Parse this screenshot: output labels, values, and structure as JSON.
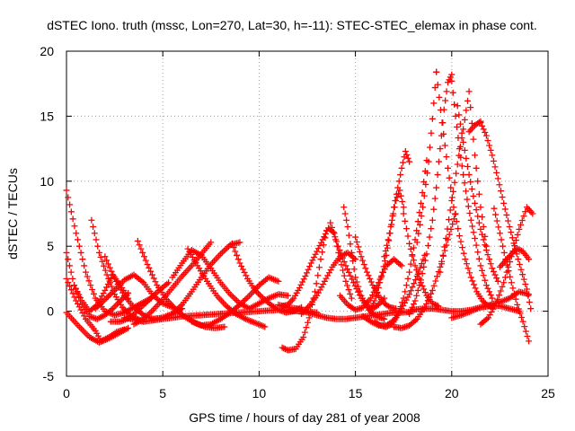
{
  "chart_data": {
    "type": "scatter",
    "title": "dSTEC Iono. truth (mssc, Lon=270, Lat=30, h=-11): STEC-STEC_elemax in phase cont.",
    "xlabel": "GPS time / hours of day 281 of year 2008",
    "ylabel": "dSTEC  / TECUs",
    "xlim": [
      0,
      25
    ],
    "ylim": [
      -5,
      20
    ],
    "x_ticks": [
      0,
      5,
      10,
      15,
      20,
      25
    ],
    "y_ticks": [
      -5,
      0,
      5,
      10,
      15,
      20
    ],
    "x_tick_labels": [
      "0",
      "5",
      "10",
      "15",
      "20",
      "25"
    ],
    "y_tick_labels": [
      "-5",
      "0",
      "5",
      "10",
      "15",
      "20"
    ],
    "grid": true,
    "grid_style": "dotted",
    "marker": "+",
    "color": "#ff0000",
    "series": [
      {
        "x": [
          0.0,
          0.5,
          1.0,
          1.5,
          2.0,
          2.5,
          3.0,
          3.5,
          4.0,
          4.4
        ],
        "y": [
          9.3,
          6.0,
          3.0,
          1.0,
          0.0,
          -0.3,
          -0.1,
          0.3,
          0.7,
          1.0
        ]
      },
      {
        "x": [
          0.0,
          0.4,
          0.8,
          1.2,
          1.6,
          2.0,
          2.4,
          2.8,
          3.2
        ],
        "y": [
          4.5,
          2.0,
          0.5,
          -0.4,
          -0.6,
          -0.3,
          0.2,
          0.8,
          1.4
        ]
      },
      {
        "x": [
          0.0,
          0.5,
          1.0,
          1.5,
          1.8,
          2.2,
          2.6,
          3.0
        ],
        "y": [
          2.5,
          0.8,
          -0.6,
          -1.5,
          -2.3,
          -2.0,
          -1.6,
          -1.4
        ]
      },
      {
        "x": [
          0.0,
          0.6,
          1.2,
          1.7,
          2.2,
          2.7,
          3.2
        ],
        "y": [
          -0.1,
          -1.1,
          -2.0,
          -2.4,
          -2.1,
          -1.7,
          -1.3
        ]
      },
      {
        "x": [
          0.4,
          0.8,
          1.2,
          1.6,
          2.0,
          2.4,
          2.8,
          3.2
        ],
        "y": [
          2.0,
          0.8,
          0.0,
          0.5,
          1.6,
          2.8,
          2.0,
          1.0
        ]
      },
      {
        "x": [
          1.3,
          1.7,
          2.1,
          2.5,
          2.9,
          3.3,
          3.7,
          4.0
        ],
        "y": [
          7.0,
          4.5,
          2.8,
          1.3,
          0.3,
          -0.3,
          -0.6,
          -0.8
        ]
      },
      {
        "x": [
          2.0,
          2.5,
          3.0,
          3.5,
          4.0,
          4.5,
          5.0,
          5.5,
          6.0
        ],
        "y": [
          4.2,
          2.5,
          1.2,
          0.3,
          -0.3,
          -0.6,
          -0.5,
          -0.2,
          0.2
        ]
      },
      {
        "x": [
          1.5,
          2.0,
          2.5,
          3.0,
          3.5,
          4.0,
          4.5,
          5.0,
          5.5
        ],
        "y": [
          0.2,
          0.9,
          1.6,
          2.4,
          2.8,
          2.2,
          1.2,
          0.6,
          0.3
        ]
      },
      {
        "x": [
          2.3,
          2.8,
          3.3,
          3.8,
          4.3,
          4.8,
          5.3
        ],
        "y": [
          -0.8,
          -0.8,
          -0.5,
          0.2,
          0.9,
          1.6,
          2.2
        ]
      },
      {
        "x": [
          3.7,
          4.2,
          4.7,
          5.2,
          5.7,
          6.2,
          6.7,
          7.2,
          7.7,
          8.2
        ],
        "y": [
          5.4,
          3.6,
          2.0,
          0.9,
          0.1,
          -0.5,
          -0.9,
          -1.2,
          -1.3,
          -1.2
        ]
      },
      {
        "x": [
          3.5,
          4.0,
          4.5,
          5.0,
          5.5,
          6.0,
          6.5,
          7.0,
          7.5
        ],
        "y": [
          -1.0,
          -0.6,
          0.1,
          0.9,
          1.8,
          2.7,
          3.5,
          4.4,
          5.3
        ]
      },
      {
        "x": [
          4.5,
          5.0,
          5.5,
          6.0,
          6.5,
          7.0,
          7.5,
          8.0,
          8.5,
          9.0
        ],
        "y": [
          -0.6,
          -0.5,
          -0.2,
          0.5,
          1.5,
          2.6,
          3.6,
          4.4,
          5.1,
          5.3
        ]
      },
      {
        "x": [
          5.5,
          6.0,
          6.5,
          7.0,
          7.5,
          8.0,
          8.5,
          9.0,
          9.5
        ],
        "y": [
          2.6,
          3.7,
          4.7,
          4.3,
          3.3,
          2.2,
          1.3,
          0.6,
          0.2
        ]
      },
      {
        "x": [
          6.3,
          6.8,
          7.3,
          7.8,
          8.3,
          8.8,
          9.3,
          9.8,
          10.3
        ],
        "y": [
          4.8,
          3.5,
          2.3,
          1.2,
          0.4,
          -0.2,
          -0.6,
          -0.9,
          -1.2
        ]
      },
      {
        "x": [
          8.6,
          9.0,
          9.4,
          9.8,
          10.2,
          10.6,
          11.0,
          11.4,
          11.8,
          12.2
        ],
        "y": [
          5.2,
          3.7,
          2.5,
          1.6,
          1.0,
          0.5,
          0.1,
          -0.1,
          0.0,
          0.3
        ]
      },
      {
        "x": [
          6.5,
          7.0,
          7.5,
          8.0,
          8.5,
          9.0,
          9.5,
          10.0,
          10.5,
          11.0
        ],
        "y": [
          -0.8,
          -1.1,
          -1.0,
          -0.6,
          -0.1,
          0.5,
          1.2,
          2.0,
          2.6,
          2.3
        ]
      },
      {
        "x": [
          3.0,
          4.0,
          5.0,
          6.0,
          7.0,
          8.0,
          9.0,
          10.0,
          11.0,
          12.0,
          13.0
        ],
        "y": [
          -0.5,
          -0.8,
          -0.6,
          -0.4,
          -0.3,
          -0.2,
          -0.1,
          0.0,
          0.1,
          0.0,
          -0.1
        ]
      },
      {
        "x": [
          9.5,
          10.0,
          10.5,
          11.0,
          11.5
        ],
        "y": [
          0.2,
          0.6,
          1.0,
          1.3,
          1.2
        ]
      },
      {
        "x": [
          11.0,
          11.5,
          12.0,
          12.5,
          13.0,
          13.5,
          14.0,
          14.5,
          15.0,
          15.5,
          16.0,
          16.5,
          17.0,
          17.5,
          18.0
        ],
        "y": [
          0.5,
          0.3,
          0.2,
          -0.1,
          -0.3,
          -0.5,
          -0.6,
          -0.6,
          -0.5,
          -0.4,
          -0.3,
          -0.2,
          -0.1,
          -0.1,
          0.0
        ]
      },
      {
        "x": [
          11.2,
          11.5,
          11.8,
          12.1,
          12.4,
          12.7,
          13.0,
          13.3,
          13.6,
          13.9,
          14.2,
          14.5,
          14.8
        ],
        "y": [
          0.4,
          0.5,
          1.0,
          1.8,
          2.7,
          3.7,
          4.6,
          5.5,
          6.4,
          6.0,
          4.0,
          2.3,
          1.0
        ]
      },
      {
        "x": [
          11.2,
          11.5,
          11.9,
          12.3,
          12.6,
          12.9,
          13.2,
          13.5
        ],
        "y": [
          -2.8,
          -3.0,
          -2.9,
          -2.0,
          -0.5,
          1.5,
          4.0,
          6.2
        ]
      },
      {
        "x": [
          12.2,
          12.6,
          13.0,
          13.4,
          13.8,
          14.2,
          14.6,
          15.0
        ],
        "y": [
          -0.2,
          0.4,
          1.2,
          2.3,
          3.4,
          4.2,
          4.5,
          4.0
        ]
      },
      {
        "x": [
          13.7,
          14.1,
          14.5,
          14.9,
          15.3,
          15.7,
          16.1,
          16.5
        ],
        "y": [
          6.8,
          5.0,
          3.5,
          2.2,
          1.0,
          0.1,
          -0.4,
          -0.6
        ]
      },
      {
        "x": [
          14.4,
          14.6,
          14.8,
          15.0,
          15.3,
          15.6,
          15.9,
          16.2,
          16.5
        ],
        "y": [
          8.0,
          6.5,
          4.5,
          2.6,
          1.2,
          0.4,
          0.2,
          0.5,
          1.0
        ]
      },
      {
        "x": [
          14.2,
          14.6,
          15.0,
          15.4,
          15.8,
          16.2,
          16.6,
          17.0,
          17.4
        ],
        "y": [
          1.2,
          0.5,
          0.1,
          0.3,
          1.0,
          2.2,
          3.5,
          4.0,
          3.5
        ]
      },
      {
        "x": [
          15.0,
          15.3,
          15.6,
          15.9,
          16.2,
          16.5,
          16.8,
          17.1
        ],
        "y": [
          5.7,
          4.2,
          3.0,
          2.0,
          1.2,
          0.6,
          0.3,
          0.2
        ]
      },
      {
        "x": [
          15.4,
          15.8,
          16.2,
          16.6,
          17.0,
          17.4,
          17.8,
          18.2,
          18.6
        ],
        "y": [
          -0.4,
          -0.8,
          -1.1,
          -1.1,
          -0.7,
          0.2,
          1.3,
          2.7,
          4.3
        ]
      },
      {
        "x": [
          15.8,
          16.0,
          16.2,
          16.4,
          16.6,
          16.8,
          17.0,
          17.2,
          17.4,
          17.6,
          17.8
        ],
        "y": [
          0.2,
          0.8,
          1.8,
          3.0,
          4.3,
          6.0,
          8.0,
          9.5,
          11.0,
          12.3,
          11.5
        ]
      },
      {
        "x": [
          16.0,
          16.3,
          16.6,
          16.9,
          17.2,
          17.5,
          17.8,
          18.1,
          18.4,
          18.7
        ],
        "y": [
          -0.8,
          -1.1,
          -1.2,
          -1.0,
          -0.3,
          1.0,
          3.0,
          5.5,
          8.3,
          11.6
        ]
      },
      {
        "x": [
          16.5,
          16.7,
          16.9,
          17.1,
          17.3,
          17.5
        ],
        "y": [
          4.2,
          5.5,
          7.0,
          8.5,
          9.3,
          8.0
        ]
      },
      {
        "x": [
          17.0,
          17.4,
          17.8,
          18.2,
          18.6,
          19.0,
          19.4,
          19.8,
          20.2
        ],
        "y": [
          -1.2,
          -1.3,
          -1.1,
          -0.6,
          0.3,
          1.6,
          3.4,
          5.5,
          7.5
        ]
      },
      {
        "x": [
          17.5,
          17.8,
          18.1,
          18.4,
          18.7,
          19.0,
          19.3
        ],
        "y": [
          7.5,
          5.2,
          3.5,
          2.2,
          1.2,
          0.6,
          0.4
        ]
      },
      {
        "x": [
          17.8,
          18.1,
          18.4,
          18.7,
          19.0,
          19.2,
          19.4,
          19.6,
          19.8,
          20.0
        ],
        "y": [
          -0.2,
          0.8,
          2.4,
          4.4,
          7.0,
          9.5,
          12.5,
          15.5,
          17.6,
          18.2
        ]
      },
      {
        "x": [
          18.2,
          18.5,
          18.8,
          19.0,
          19.2
        ],
        "y": [
          5.3,
          8.0,
          11.5,
          14.8,
          18.4
        ]
      },
      {
        "x": [
          19.2,
          19.5,
          19.8,
          20.1,
          20.4,
          20.7,
          21.0,
          21.3,
          21.6,
          21.9,
          22.2
        ],
        "y": [
          18.4,
          14.5,
          11.0,
          8.0,
          5.8,
          4.0,
          2.6,
          1.5,
          0.8,
          0.4,
          0.4
        ]
      },
      {
        "x": [
          19.4,
          19.7,
          20.0,
          20.3,
          20.6,
          20.9,
          21.2,
          21.5,
          21.8
        ],
        "y": [
          3.0,
          5.6,
          8.5,
          11.3,
          14.0,
          16.9,
          12.0,
          8.0,
          5.0
        ]
      },
      {
        "x": [
          20.0,
          20.2,
          20.4,
          20.6,
          20.8,
          21.0,
          21.2,
          21.5,
          21.8,
          22.1
        ],
        "y": [
          17.7,
          15.0,
          12.5,
          10.5,
          8.6,
          7.0,
          5.6,
          3.5,
          2.0,
          1.0
        ]
      },
      {
        "x": [
          20.3,
          20.6,
          20.9,
          21.2,
          21.5,
          21.8,
          22.1,
          22.4
        ],
        "y": [
          15.8,
          13.0,
          10.5,
          8.3,
          6.3,
          4.7,
          3.3,
          2.3
        ]
      },
      {
        "x": [
          20.9,
          21.2,
          21.5
        ],
        "y": [
          13.8,
          14.3,
          14.6
        ]
      },
      {
        "x": [
          21.5,
          21.8,
          22.1,
          22.4,
          22.7,
          23.0,
          23.3,
          23.6,
          23.9,
          24.1
        ],
        "y": [
          14.5,
          13.5,
          12.0,
          10.2,
          8.3,
          6.5,
          4.8,
          3.2,
          1.7,
          0.2
        ]
      },
      {
        "x": [
          21.5,
          21.9,
          22.3,
          22.7,
          23.1,
          23.5,
          23.9,
          24.2
        ],
        "y": [
          -1.0,
          -0.5,
          0.6,
          2.2,
          4.2,
          6.3,
          8.0,
          7.5
        ]
      },
      {
        "x": [
          22.2,
          22.5,
          22.8,
          23.1,
          23.4,
          23.7,
          24.0
        ],
        "y": [
          7.9,
          6.0,
          4.0,
          2.2,
          0.5,
          -0.8,
          -2.3
        ]
      },
      {
        "x": [
          22.5,
          22.8,
          23.1,
          23.4,
          23.7,
          24.0
        ],
        "y": [
          3.4,
          3.9,
          4.4,
          4.8,
          4.6,
          4.0
        ]
      },
      {
        "x": [
          20.0,
          20.5,
          21.0,
          21.5,
          22.0,
          22.5,
          23.0,
          23.5,
          24.0
        ],
        "y": [
          -0.5,
          -0.3,
          0.0,
          0.3,
          0.5,
          0.7,
          1.0,
          1.5,
          1.3
        ]
      },
      {
        "x": [
          18.0,
          18.5,
          19.0,
          19.5,
          20.0,
          20.5,
          21.0,
          21.5,
          22.0,
          22.5,
          23.0,
          23.5
        ],
        "y": [
          0.1,
          0.2,
          0.2,
          0.1,
          0.0,
          0.0,
          0.1,
          0.3,
          0.4,
          0.4,
          0.2,
          0.0
        ]
      }
    ]
  }
}
